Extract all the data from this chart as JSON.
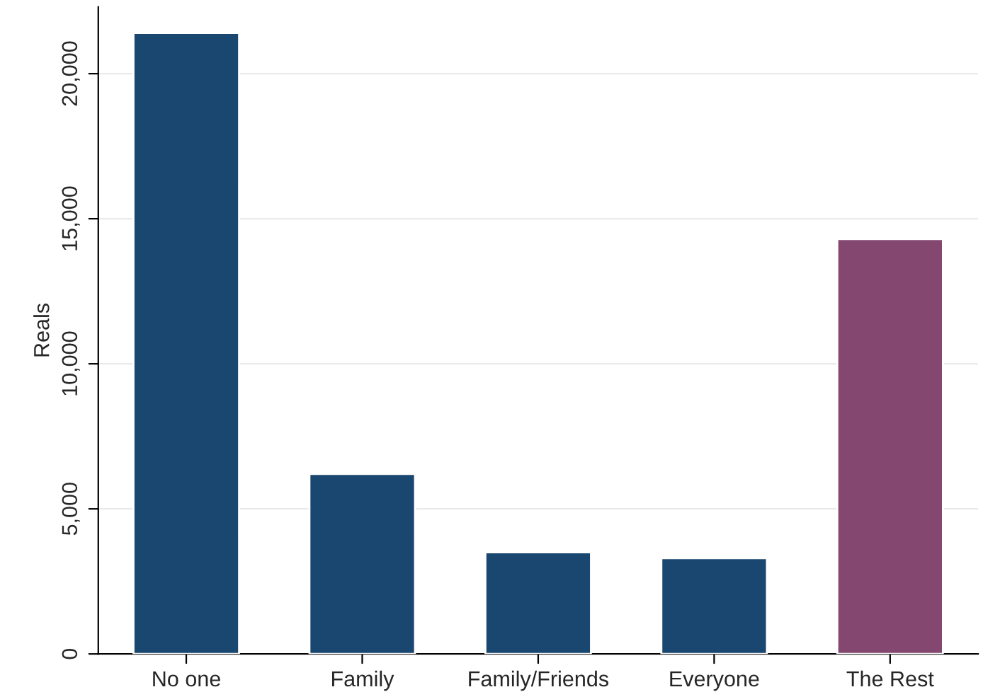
{
  "chart_data": {
    "type": "bar",
    "ylabel": "Reals",
    "categories": [
      "No one",
      "Family",
      "Family/Friends",
      "Everyone",
      "The Rest"
    ],
    "values": [
      21400,
      6200,
      3500,
      3300,
      14300
    ],
    "colors": [
      "#1a476f",
      "#1a476f",
      "#1a476f",
      "#1a476f",
      "#844870"
    ],
    "ylim": [
      0,
      22300
    ],
    "yticks": [
      {
        "value": 0,
        "label": "0"
      },
      {
        "value": 5000,
        "label": "5,000"
      },
      {
        "value": 10000,
        "label": "10,000"
      },
      {
        "value": 15000,
        "label": "15,000"
      },
      {
        "value": 20000,
        "label": "20,000"
      }
    ],
    "grid": "y",
    "legend": false
  }
}
